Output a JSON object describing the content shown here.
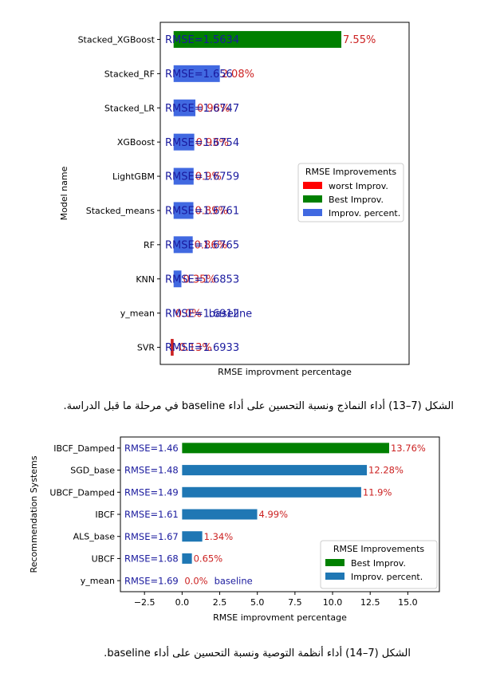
{
  "chart_data": [
    {
      "type": "bar",
      "orientation": "horizontal",
      "ylabel": "Model name",
      "xlabel": "RMSE improvment percentage",
      "categories": [
        "Stacked_XGBoost",
        "Stacked_RF",
        "Stacked_LR",
        "XGBoost",
        "LightGBM",
        "Stacked_means",
        "RF",
        "KNN",
        "y_mean",
        "SVR"
      ],
      "values": [
        7.55,
        2.08,
        0.98,
        0.93,
        0.9,
        0.89,
        0.86,
        0.35,
        0.0,
        -0.13
      ],
      "value_labels": [
        "7.55%",
        "2.08%",
        "0.98%",
        "0.93%",
        "0.9%",
        "0.89%",
        "0.86%",
        "0.35%",
        "0.0%",
        "-0.13%"
      ],
      "rmse_labels": [
        "RMSE=1.5634",
        "RMSE=1.656",
        "RMSE=1.6747",
        "RMSE=1.6754",
        "RMSE=1.6759",
        "RMSE=1.6761",
        "RMSE=1.6765",
        "RMSE=1.6853",
        "RMSE=1.6912",
        "RMSE=1.6933"
      ],
      "bar_roles": [
        "best",
        "improv",
        "improv",
        "improv",
        "improv",
        "improv",
        "improv",
        "improv",
        "baseline",
        "worst"
      ],
      "baseline_label": "baseline",
      "xlim": [
        -0.6,
        10.6
      ],
      "show_xticks": false,
      "grid": false,
      "legend": {
        "title": "RMSE Improvements",
        "placement": "center-right",
        "entries": [
          {
            "label": "worst Improv.",
            "color": "#ff0000"
          },
          {
            "label": "Best Improv.",
            "color": "#008000"
          },
          {
            "label": "Improv. percent.",
            "color": "#4169e1"
          }
        ]
      },
      "colors": {
        "best": "#008000",
        "improv": "#4169e1",
        "worst": "#cc2222",
        "label": "#cc2222",
        "rmse": "#1a1a9e"
      }
    },
    {
      "type": "bar",
      "orientation": "horizontal",
      "ylabel": "Recommendation Systems",
      "xlabel": "RMSE improvment percentage",
      "categories": [
        "IBCF_Damped",
        "SGD_base",
        "UBCF_Damped",
        "IBCF",
        "ALS_base",
        "UBCF",
        "y_mean"
      ],
      "values": [
        13.76,
        12.28,
        11.9,
        4.99,
        1.34,
        0.65,
        0.0
      ],
      "value_labels": [
        "13.76%",
        "12.28%",
        "11.9%",
        "4.99%",
        "1.34%",
        "0.65%",
        "0.0%"
      ],
      "rmse_labels": [
        "RMSE=1.46",
        "RMSE=1.48",
        "RMSE=1.49",
        "RMSE=1.61",
        "RMSE=1.67",
        "RMSE=1.68",
        "RMSE=1.69"
      ],
      "bar_roles": [
        "best",
        "improv",
        "improv",
        "improv",
        "improv",
        "improv",
        "baseline"
      ],
      "baseline_label": "baseline",
      "xlim": [
        -4.1,
        17.1
      ],
      "xticks": [
        -2.5,
        0.0,
        2.5,
        5.0,
        7.5,
        10.0,
        12.5,
        15.0
      ],
      "xtick_labels": [
        "−2.5",
        "0.0",
        "2.5",
        "5.0",
        "7.5",
        "10.0",
        "12.5",
        "15.0"
      ],
      "grid": false,
      "legend": {
        "title": "RMSE Improvements",
        "placement": "lower-right",
        "entries": [
          {
            "label": "Best Improv.",
            "color": "#008000"
          },
          {
            "label": "Improv. percent.",
            "color": "#1f77b4"
          }
        ]
      },
      "colors": {
        "best": "#008000",
        "improv": "#1f77b4",
        "label": "#cc2222",
        "rmse": "#1a1a9e"
      }
    }
  ],
  "captions": {
    "figure1": "الشكل (7–13) أداء النماذج ونسبة التحسين على أداء baseline في مرحلة ما قبل الدراسة.",
    "figure2": "الشكل (7–14) أداء أنظمة التوصية ونسبة التحسين على أداء baseline."
  }
}
